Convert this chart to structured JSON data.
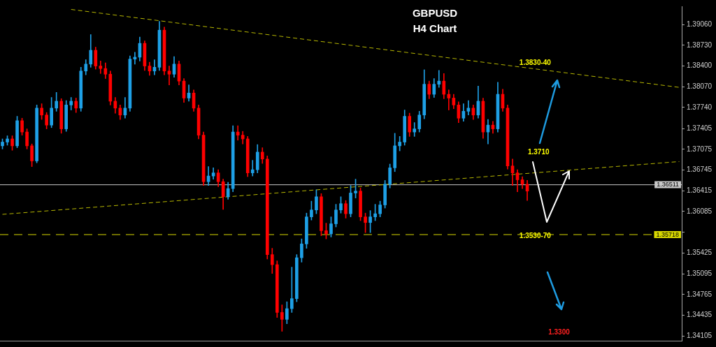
{
  "chart_data": {
    "type": "candlestick",
    "title": "GBPUSD",
    "subtitle": "H4 Chart",
    "categories": [
      null,
      null,
      null,
      null,
      null,
      null,
      null,
      null,
      null,
      null,
      null,
      null,
      null,
      null,
      null,
      null,
      null,
      null,
      null,
      null,
      null,
      null,
      null,
      null,
      null,
      null,
      null,
      null,
      null,
      null,
      null,
      null,
      null,
      null,
      null,
      null,
      null,
      null,
      null,
      null,
      null,
      null,
      null,
      null,
      null,
      null,
      null,
      null,
      null,
      null,
      null,
      null,
      null,
      null,
      null,
      null,
      null,
      null,
      null,
      null,
      null,
      null,
      null,
      null,
      null,
      null,
      null,
      null,
      null,
      null,
      null,
      null,
      null,
      null,
      null,
      null,
      null,
      null,
      null,
      null,
      null,
      null,
      null,
      null,
      null,
      null,
      null,
      null,
      null,
      null,
      null,
      null,
      null,
      null,
      null,
      null,
      null,
      null,
      null,
      null,
      null,
      null,
      null,
      null,
      null,
      null,
      null,
      null,
      null,
      null,
      null,
      null,
      null,
      null,
      null,
      null,
      null,
      null,
      null,
      null,
      null,
      null,
      null,
      null,
      null,
      null,
      null,
      null,
      null,
      null,
      null,
      null,
      null,
      null,
      null,
      null,
      null,
      null,
      null
    ],
    "ohlc": [
      [
        1.3713,
        1.3724,
        1.3708,
        1.3719
      ],
      [
        1.3719,
        1.3729,
        1.3714,
        1.3724
      ],
      [
        1.3724,
        1.3729,
        1.3706,
        1.3713
      ],
      [
        1.3713,
        1.376,
        1.371,
        1.3753
      ],
      [
        1.3753,
        1.3757,
        1.373,
        1.3735
      ],
      [
        1.3735,
        1.374,
        1.3708,
        1.3713
      ],
      [
        1.3713,
        1.3716,
        1.368,
        1.3689
      ],
      [
        1.3689,
        1.3778,
        1.3686,
        1.3773
      ],
      [
        1.3773,
        1.378,
        1.3755,
        1.3762
      ],
      [
        1.3762,
        1.3766,
        1.374,
        1.3746
      ],
      [
        1.3746,
        1.379,
        1.3742,
        1.3773
      ],
      [
        1.3773,
        1.3798,
        1.3768,
        1.3784
      ],
      [
        1.3784,
        1.3788,
        1.3733,
        1.374
      ],
      [
        1.374,
        1.3785,
        1.3736,
        1.3778
      ],
      [
        1.3778,
        1.379,
        1.377,
        1.3784
      ],
      [
        1.3784,
        1.3789,
        1.3766,
        1.3773
      ],
      [
        1.3773,
        1.3838,
        1.3768,
        1.3832
      ],
      [
        1.3832,
        1.385,
        1.3826,
        1.3843
      ],
      [
        1.3843,
        1.389,
        1.3838,
        1.3865
      ],
      [
        1.3865,
        1.387,
        1.3835,
        1.384
      ],
      [
        1.384,
        1.3848,
        1.3828,
        1.3836
      ],
      [
        1.3836,
        1.3845,
        1.382,
        1.3827
      ],
      [
        1.3827,
        1.3832,
        1.3778,
        1.3784
      ],
      [
        1.3784,
        1.379,
        1.3765,
        1.3773
      ],
      [
        1.3773,
        1.3778,
        1.3755,
        1.3762
      ],
      [
        1.3762,
        1.379,
        1.3757,
        1.3773
      ],
      [
        1.3773,
        1.3856,
        1.3768,
        1.3851
      ],
      [
        1.3851,
        1.3862,
        1.3843,
        1.3854
      ],
      [
        1.3854,
        1.3886,
        1.3848,
        1.3876
      ],
      [
        1.3876,
        1.388,
        1.3833,
        1.384
      ],
      [
        1.384,
        1.3846,
        1.3825,
        1.3832
      ],
      [
        1.3832,
        1.385,
        1.3826,
        1.3838
      ],
      [
        1.3838,
        1.3911,
        1.3833,
        1.3897
      ],
      [
        1.3897,
        1.3902,
        1.3826,
        1.3832
      ],
      [
        1.3832,
        1.384,
        1.381,
        1.3827
      ],
      [
        1.3827,
        1.3855,
        1.3822,
        1.3843
      ],
      [
        1.3843,
        1.3848,
        1.381,
        1.3816
      ],
      [
        1.3816,
        1.382,
        1.3782,
        1.3789
      ],
      [
        1.3789,
        1.381,
        1.3784,
        1.3797
      ],
      [
        1.3797,
        1.3802,
        1.3768,
        1.3773
      ],
      [
        1.3773,
        1.3778,
        1.3724,
        1.373
      ],
      [
        1.373,
        1.3735,
        1.365,
        1.3656
      ],
      [
        1.3656,
        1.368,
        1.365,
        1.3665
      ],
      [
        1.3665,
        1.3678,
        1.366,
        1.367
      ],
      [
        1.367,
        1.3675,
        1.3648,
        1.3656
      ],
      [
        1.3656,
        1.366,
        1.3612,
        1.3632
      ],
      [
        1.3632,
        1.3655,
        1.3628,
        1.3645
      ],
      [
        1.3645,
        1.3745,
        1.364,
        1.3735
      ],
      [
        1.3735,
        1.3745,
        1.3722,
        1.373
      ],
      [
        1.373,
        1.3736,
        1.3716,
        1.3724
      ],
      [
        1.3724,
        1.3728,
        1.3664,
        1.367
      ],
      [
        1.367,
        1.369,
        1.3665,
        1.3675
      ],
      [
        1.3675,
        1.3715,
        1.367,
        1.3703
      ],
      [
        1.3703,
        1.371,
        1.3685,
        1.3692
      ],
      [
        1.3692,
        1.3697,
        1.3533,
        1.354
      ],
      [
        1.354,
        1.355,
        1.351,
        1.3524
      ],
      [
        1.3524,
        1.353,
        1.344,
        1.3448
      ],
      [
        1.3448,
        1.346,
        1.3418,
        1.3437
      ],
      [
        1.3437,
        1.3465,
        1.343,
        1.3454
      ],
      [
        1.3454,
        1.352,
        1.3448,
        1.347
      ],
      [
        1.347,
        1.354,
        1.3465,
        1.3535
      ],
      [
        1.3535,
        1.3565,
        1.3528,
        1.3557
      ],
      [
        1.3557,
        1.3606,
        1.355,
        1.36
      ],
      [
        1.36,
        1.3625,
        1.3595,
        1.3611
      ],
      [
        1.3611,
        1.3643,
        1.3605,
        1.3632
      ],
      [
        1.3632,
        1.3637,
        1.357,
        1.3578
      ],
      [
        1.3578,
        1.359,
        1.3565,
        1.3573
      ],
      [
        1.3573,
        1.36,
        1.3568,
        1.3589
      ],
      [
        1.3589,
        1.362,
        1.3584,
        1.3611
      ],
      [
        1.3611,
        1.3632,
        1.3606,
        1.3621
      ],
      [
        1.3621,
        1.3626,
        1.3598,
        1.3605
      ],
      [
        1.3605,
        1.365,
        1.36,
        1.3638
      ],
      [
        1.3638,
        1.366,
        1.363,
        1.3641
      ],
      [
        1.3641,
        1.3646,
        1.3594,
        1.36
      ],
      [
        1.36,
        1.3606,
        1.3575,
        1.3591
      ],
      [
        1.3591,
        1.361,
        1.3575,
        1.36
      ],
      [
        1.36,
        1.362,
        1.3594,
        1.3605
      ],
      [
        1.3605,
        1.3625,
        1.36,
        1.3619
      ],
      [
        1.3619,
        1.3658,
        1.3614,
        1.3652
      ],
      [
        1.3652,
        1.3684,
        1.3646,
        1.3678
      ],
      [
        1.3678,
        1.3733,
        1.3672,
        1.3713
      ],
      [
        1.3713,
        1.3728,
        1.3705,
        1.3719
      ],
      [
        1.3719,
        1.377,
        1.3714,
        1.376
      ],
      [
        1.376,
        1.3765,
        1.3728,
        1.3735
      ],
      [
        1.3735,
        1.375,
        1.3728,
        1.374
      ],
      [
        1.374,
        1.3768,
        1.3735,
        1.3762
      ],
      [
        1.3762,
        1.3834,
        1.3756,
        1.3811
      ],
      [
        1.3811,
        1.3816,
        1.3788,
        1.3795
      ],
      [
        1.3795,
        1.382,
        1.379,
        1.3811
      ],
      [
        1.3811,
        1.3833,
        1.3806,
        1.3816
      ],
      [
        1.3816,
        1.3828,
        1.3788,
        1.3795
      ],
      [
        1.3795,
        1.3802,
        1.377,
        1.3789
      ],
      [
        1.3789,
        1.3795,
        1.3772,
        1.3778
      ],
      [
        1.3778,
        1.3783,
        1.375,
        1.3757
      ],
      [
        1.3757,
        1.378,
        1.3752,
        1.3768
      ],
      [
        1.3768,
        1.3785,
        1.3762,
        1.3773
      ],
      [
        1.3773,
        1.3778,
        1.3755,
        1.3762
      ],
      [
        1.3762,
        1.3808,
        1.3757,
        1.3784
      ],
      [
        1.3784,
        1.3789,
        1.3725,
        1.3735
      ],
      [
        1.3735,
        1.3755,
        1.3716,
        1.3746
      ],
      [
        1.3746,
        1.3752,
        1.3733,
        1.374
      ],
      [
        1.374,
        1.3814,
        1.3735,
        1.3795
      ],
      [
        1.3795,
        1.3803,
        1.3768,
        1.3773
      ],
      [
        1.3773,
        1.3778,
        1.3676,
        1.3681
      ],
      [
        1.3681,
        1.3692,
        1.365,
        1.367
      ],
      [
        1.367,
        1.3675,
        1.364,
        1.3659
      ],
      [
        1.3659,
        1.3664,
        1.3645,
        1.3652
      ],
      [
        1.3652,
        1.3658,
        1.3626,
        1.3641
      ],
      null,
      null,
      null,
      null,
      null,
      null,
      null,
      null,
      null,
      null,
      null,
      null,
      null,
      null,
      null,
      null,
      null,
      null,
      null,
      null,
      null,
      null,
      null,
      null,
      null,
      null,
      null,
      null,
      null,
      null,
      null
    ],
    "colors": [
      "#1ea0e6",
      "#1ea0e6",
      "#ff0000",
      "#1ea0e6",
      "#ff0000",
      "#ff0000",
      "#ff0000",
      "#1ea0e6",
      "#ff0000",
      "#ff0000",
      "#1ea0e6",
      "#1ea0e6",
      "#ff0000",
      "#1ea0e6",
      "#1ea0e6",
      "#ff0000",
      "#1ea0e6",
      "#1ea0e6",
      "#1ea0e6",
      "#ff0000",
      "#ff0000",
      "#ff0000",
      "#ff0000",
      "#ff0000",
      "#ff0000",
      "#1ea0e6",
      "#1ea0e6",
      "#1ea0e6",
      "#1ea0e6",
      "#ff0000",
      "#ff0000",
      "#1ea0e6",
      "#1ea0e6",
      "#ff0000",
      "#ff0000",
      "#1ea0e6",
      "#ff0000",
      "#ff0000",
      "#1ea0e6",
      "#ff0000",
      "#ff0000",
      "#ff0000",
      "#1ea0e6",
      "#1ea0e6",
      "#ff0000",
      "#ff0000",
      "#1ea0e6",
      "#1ea0e6",
      "#ff0000",
      "#ff0000",
      "#ff0000",
      "#1ea0e6",
      "#1ea0e6",
      "#ff0000",
      "#ff0000",
      "#ff0000",
      "#ff0000",
      "#ff0000",
      "#1ea0e6",
      "#1ea0e6",
      "#1ea0e6",
      "#1ea0e6",
      "#1ea0e6",
      "#1ea0e6",
      "#1ea0e6",
      "#ff0000",
      "#ff0000",
      "#1ea0e6",
      "#1ea0e6",
      "#1ea0e6",
      "#ff0000",
      "#1ea0e6",
      "#1ea0e6",
      "#ff0000",
      "#ff0000",
      "#1ea0e6",
      "#1ea0e6",
      "#1ea0e6",
      "#1ea0e6",
      "#1ea0e6",
      "#1ea0e6",
      "#1ea0e6",
      "#1ea0e6",
      "#ff0000",
      "#1ea0e6",
      "#1ea0e6",
      "#1ea0e6",
      "#ff0000",
      "#1ea0e6",
      "#1ea0e6",
      "#ff0000",
      "#ff0000",
      "#ff0000",
      "#ff0000",
      "#1ea0e6",
      "#1ea0e6",
      "#ff0000",
      "#1ea0e6",
      "#ff0000",
      "#1ea0e6",
      "#ff0000",
      "#1ea0e6",
      "#ff0000",
      "#ff0000",
      "#ff0000",
      "#ff0000",
      "#ff0000",
      "#ff0000",
      null,
      null,
      null,
      null,
      null,
      null,
      null,
      null,
      null,
      null,
      null,
      null,
      null,
      null,
      null,
      null,
      null,
      null,
      null,
      null,
      null,
      null,
      null,
      null,
      null,
      null,
      null,
      null,
      null,
      null,
      null
    ],
    "series": [
      {
        "type": "line",
        "values": [
          null,
          null,
          null,
          null,
          null,
          null,
          null,
          null,
          null,
          null,
          null,
          null,
          null,
          null,
          1.393,
          null,
          null,
          null,
          null,
          null,
          null,
          null,
          null,
          null,
          null,
          null,
          null,
          null,
          null,
          null,
          null,
          null,
          null,
          null,
          null,
          null,
          null,
          null,
          null,
          null,
          null,
          null,
          null,
          null,
          null,
          null,
          null,
          null,
          null,
          null,
          null,
          null,
          null,
          null,
          null,
          null,
          null,
          null,
          null,
          null,
          null,
          null,
          null,
          null,
          null,
          null,
          null,
          null,
          null,
          null,
          null,
          null,
          null,
          null,
          null,
          null,
          null,
          null,
          null,
          null,
          null,
          null,
          null,
          null,
          null,
          null,
          null,
          null,
          null,
          null,
          null,
          null,
          null,
          null,
          null,
          null,
          null,
          null,
          null,
          null,
          null,
          null,
          null,
          null,
          null,
          null,
          null,
          null,
          null,
          null,
          null,
          null,
          null,
          null,
          null,
          null,
          null,
          null,
          null,
          null,
          null,
          null,
          null,
          null,
          null,
          null,
          null,
          null,
          null,
          null,
          null,
          null,
          null,
          null,
          null,
          null,
          null,
          null,
          1.3806
        ],
        "color": "#b8b800",
        "line_style": "dashed"
      },
      {
        "type": "line",
        "values": [
          1.3604,
          null,
          null,
          null,
          null,
          null,
          null,
          null,
          null,
          null,
          null,
          null,
          null,
          null,
          null,
          null,
          null,
          null,
          null,
          null,
          null,
          null,
          null,
          null,
          null,
          null,
          null,
          null,
          null,
          null,
          null,
          null,
          null,
          null,
          null,
          null,
          null,
          null,
          null,
          null,
          null,
          null,
          null,
          null,
          null,
          null,
          null,
          null,
          null,
          null,
          null,
          null,
          null,
          null,
          null,
          null,
          null,
          null,
          null,
          null,
          null,
          null,
          null,
          null,
          null,
          null,
          null,
          null,
          null,
          null,
          null,
          null,
          null,
          null,
          null,
          null,
          null,
          null,
          null,
          null,
          null,
          null,
          null,
          null,
          null,
          null,
          null,
          null,
          null,
          null,
          null,
          null,
          null,
          null,
          null,
          null,
          null,
          null,
          null,
          null,
          null,
          null,
          null,
          null,
          null,
          null,
          null,
          null,
          null,
          null,
          null,
          null,
          null,
          null,
          null,
          null,
          null,
          null,
          null,
          null,
          null,
          null,
          null,
          null,
          null,
          null,
          null,
          null,
          null,
          null,
          null,
          null,
          null,
          null,
          null,
          null,
          null,
          null,
          1.3688
        ],
        "color": "#b8b800",
        "line_style": "dashed"
      }
    ],
    "ylim": [
      1.3403,
      1.3935
    ],
    "yticks": [
      {
        "value": 1.3906,
        "label": "1.39060"
      },
      {
        "value": 1.3873,
        "label": "1.38730"
      },
      {
        "value": 1.384,
        "label": "1.38400"
      },
      {
        "value": 1.3807,
        "label": "1.38070"
      },
      {
        "value": 1.3774,
        "label": "1.37740"
      },
      {
        "value": 1.37405,
        "label": "1.37405"
      },
      {
        "value": 1.37075,
        "label": "1.37075"
      },
      {
        "value": 1.36745,
        "label": "1.36745"
      },
      {
        "value": 1.36415,
        "label": "1.36415"
      },
      {
        "value": 1.36085,
        "label": "1.36085"
      },
      {
        "value": 1.35755,
        "label": null
      },
      {
        "value": 1.35425,
        "label": "1.35425"
      },
      {
        "value": 1.35095,
        "label": "1.35095"
      },
      {
        "value": 1.34765,
        "label": "1.34765"
      },
      {
        "value": 1.34435,
        "label": "1.34435"
      },
      {
        "value": 1.34105,
        "label": "1.34105"
      }
    ],
    "ref_lines": [
      {
        "axis": "y",
        "value": 1.35718,
        "label": "1.35718",
        "color": "#d8d800",
        "line_style": "dashed"
      },
      {
        "axis": "y",
        "value": 1.36511,
        "label": "1.36511",
        "color": "#c8c8c8",
        "line_style": "solid"
      }
    ],
    "annotations": [
      "1.3830-40",
      "1.3710",
      "1.3530-70",
      "1.3300"
    ],
    "tick_labels": "y",
    "grid": false,
    "legend": false
  }
}
